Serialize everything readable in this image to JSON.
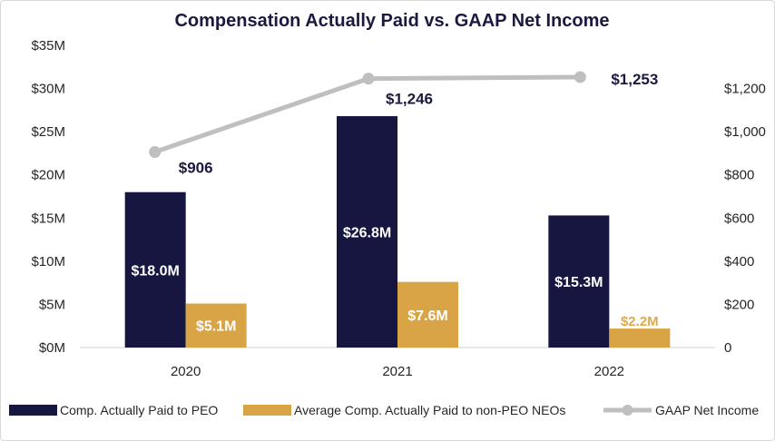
{
  "chart_data": {
    "type": "bar+line",
    "title": "Compensation Actually Paid vs. GAAP Net Income",
    "categories": [
      "2020",
      "2021",
      "2022"
    ],
    "series": [
      {
        "name": "Comp. Actually Paid to PEO",
        "kind": "bar",
        "axis": "left",
        "color": "#161640",
        "values": [
          18.0,
          26.8,
          15.3
        ],
        "labels": [
          "$18.0M",
          "$26.8M",
          "$15.3M"
        ]
      },
      {
        "name": "Average Comp. Actually Paid to non-PEO NEOs",
        "kind": "bar",
        "axis": "left",
        "color": "#d9a445",
        "values": [
          5.1,
          7.6,
          2.2
        ],
        "labels": [
          "$5.1M",
          "$7.6M",
          "$2.2M"
        ]
      },
      {
        "name": "GAAP Net Income",
        "kind": "line",
        "axis": "right",
        "color": "#bfbfbf",
        "values": [
          906,
          1246,
          1253
        ],
        "labels": [
          "$906",
          "$1,246",
          "$1,253"
        ]
      }
    ],
    "left_axis": {
      "ylim": [
        0,
        35
      ],
      "ticks": [
        "$0M",
        "$5M",
        "$10M",
        "$15M",
        "$20M",
        "$25M",
        "$30M",
        "$35M"
      ]
    },
    "right_axis": {
      "ylim": [
        0,
        1400
      ],
      "ticks": [
        "0",
        "$200",
        "$400",
        "$600",
        "$800",
        "$1,000",
        "$1,200"
      ]
    },
    "grid": false,
    "legend": "bottom"
  }
}
